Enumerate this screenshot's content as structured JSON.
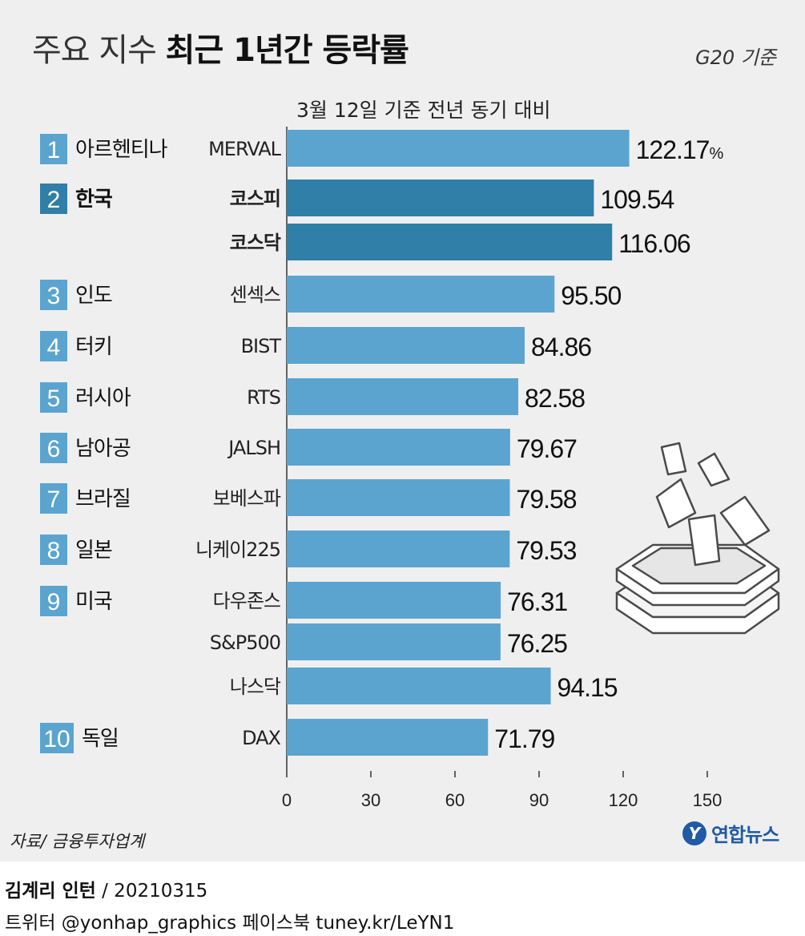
{
  "header": {
    "title_light": "주요 지수",
    "title_bold": "최근 1년간 등락률",
    "basis": "G20 기준",
    "subtitle": "3월 12일 기준 전년 동기 대비"
  },
  "chart_data": {
    "type": "bar",
    "orientation": "horizontal",
    "title": "주요 지수 최근 1년간 등락률",
    "subtitle": "3월 12일 기준 전년 동기 대비",
    "unit": "%",
    "xlim": [
      0,
      175
    ],
    "ticks": [
      0,
      30,
      60,
      90,
      120,
      150
    ],
    "countries": [
      {
        "rank": "1",
        "name": "아르헨티나"
      },
      {
        "rank": "2",
        "name": "한국"
      },
      {
        "rank": "3",
        "name": "인도"
      },
      {
        "rank": "4",
        "name": "터키"
      },
      {
        "rank": "5",
        "name": "러시아"
      },
      {
        "rank": "6",
        "name": "남아공"
      },
      {
        "rank": "7",
        "name": "브라질"
      },
      {
        "rank": "8",
        "name": "일본"
      },
      {
        "rank": "9",
        "name": "미국"
      },
      {
        "rank": "10",
        "name": "독일"
      }
    ],
    "bars": [
      {
        "country": "1",
        "index": "MERVAL",
        "value": 122.17,
        "label": "122.17",
        "unit_label": "%",
        "highlight": false
      },
      {
        "country": "2",
        "index": "코스피",
        "value": 109.54,
        "label": "109.54",
        "highlight": true
      },
      {
        "country": "2",
        "index": "코스닥",
        "value": 116.06,
        "label": "116.06",
        "highlight": true
      },
      {
        "country": "3",
        "index": "센섹스",
        "value": 95.5,
        "label": "95.50",
        "highlight": false
      },
      {
        "country": "4",
        "index": "BIST",
        "value": 84.86,
        "label": "84.86",
        "highlight": false
      },
      {
        "country": "5",
        "index": "RTS",
        "value": 82.58,
        "label": "82.58",
        "highlight": false
      },
      {
        "country": "6",
        "index": "JALSH",
        "value": 79.67,
        "label": "79.67",
        "highlight": false
      },
      {
        "country": "7",
        "index": "보베스파",
        "value": 79.58,
        "label": "79.58",
        "highlight": false
      },
      {
        "country": "8",
        "index": "니케이225",
        "value": 79.53,
        "label": "79.53",
        "highlight": false
      },
      {
        "country": "9",
        "index": "다우존스",
        "value": 76.31,
        "label": "76.31",
        "highlight": false
      },
      {
        "country": "9",
        "index": "S&P500",
        "value": 76.25,
        "label": "76.25",
        "highlight": false
      },
      {
        "country": "9",
        "index": "나스닥",
        "value": 94.15,
        "label": "94.15",
        "highlight": false
      },
      {
        "country": "10",
        "index": "DAX",
        "value": 71.79,
        "label": "71.79",
        "highlight": false
      }
    ]
  },
  "colors": {
    "bar": "#5ba4cf",
    "bar_highlight": "#2f7fa8",
    "badge": "#5ba4cf",
    "badge_highlight": "#2f7fa8",
    "panel": "#efefef"
  },
  "footer": {
    "source": "자료/ 금융투자업계",
    "logo_mark": "Y",
    "logo_text": "연합뉴스",
    "author": "김계리 인턴",
    "date": " / 20210315",
    "social": "트위터 @yonhap_graphics  페이스북 tuney.kr/LeYN1"
  },
  "illustration": "stock-papers-icon"
}
